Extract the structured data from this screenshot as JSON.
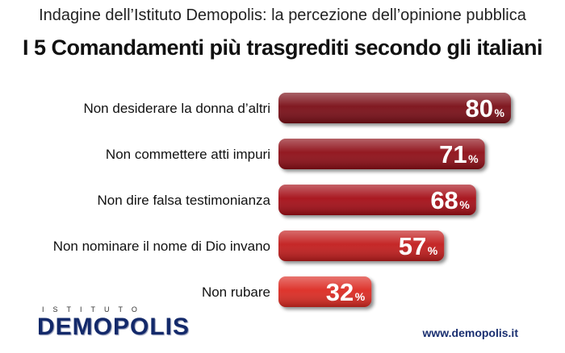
{
  "header": {
    "subtitle": "Indagine dell’Istituto Demopolis: la percezione dell’opinione pubblica",
    "title": "I 5 Comandamenti più trasgrediti secondo gli italiani"
  },
  "chart_data": {
    "type": "bar",
    "orientation": "horizontal",
    "categories": [
      "Non desiderare la donna d’altri",
      "Non commettere atti impuri",
      "Non dire falsa testimonianza",
      "Non nominare il nome di Dio invano",
      "Non rubare"
    ],
    "values": [
      80,
      71,
      68,
      57,
      32
    ],
    "value_labels": [
      "80",
      "71",
      "68",
      "57",
      "32"
    ],
    "unit": "%",
    "bar_colors": [
      "#7a0a12",
      "#8e0d14",
      "#a50f16",
      "#c21a1c",
      "#dc2a22"
    ]
  },
  "footer": {
    "logo_top": "ISTITUTO",
    "logo_main": "DEMOPOLIS",
    "website": "www.demopolis.it"
  }
}
